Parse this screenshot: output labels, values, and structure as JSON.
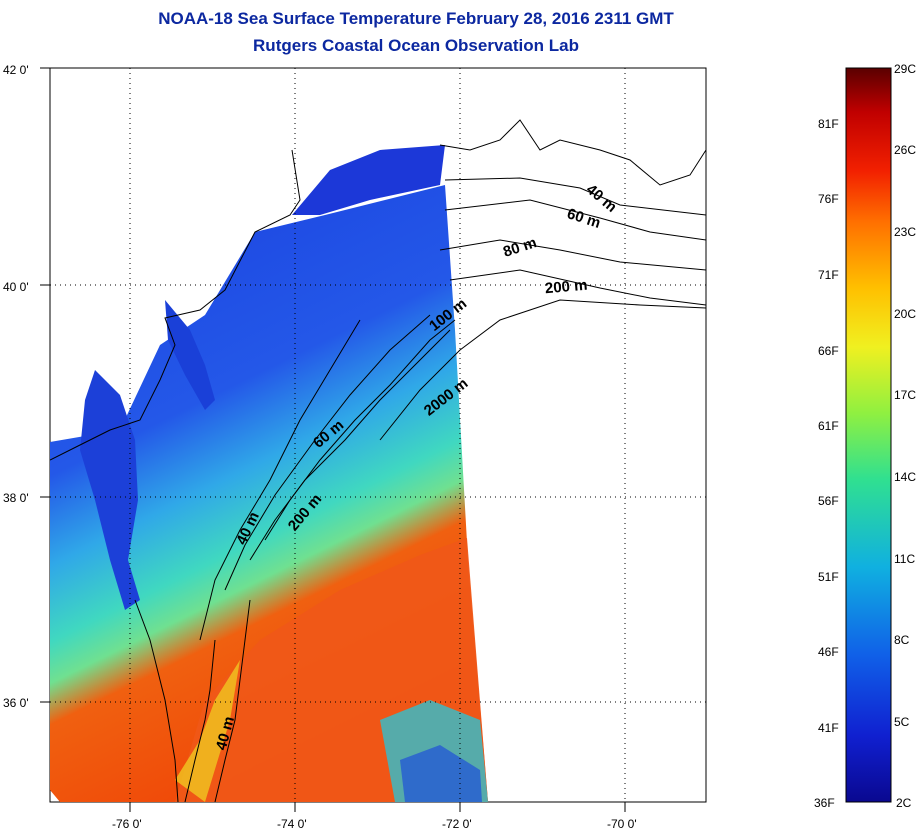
{
  "title": {
    "line1": "NOAA-18 Sea Surface Temperature February 28, 2016 2311 GMT",
    "line2": "Rutgers Coastal Ocean Observation Lab"
  },
  "map": {
    "lat_ticks": [
      "42 0'",
      "40 0'",
      "38 0'",
      "36 0'"
    ],
    "lon_ticks": [
      "-76 0'",
      "-74 0'",
      "-72 0'",
      "-70 0'"
    ],
    "depth_labels": [
      "40 m",
      "60 m",
      "80 m",
      "200 m",
      "100 m",
      "2000 m",
      "60 m",
      "200 m",
      "40 m",
      "40 m"
    ]
  },
  "colorbar": {
    "celsius_labels": [
      "29C",
      "26C",
      "23C",
      "20C",
      "17C",
      "14C",
      "11C",
      "8C",
      "5C",
      "2C"
    ],
    "fahrenheit_labels": [
      "81F",
      "76F",
      "71F",
      "66F",
      "61F",
      "56F",
      "51F",
      "46F",
      "41F",
      "36F"
    ],
    "colors": [
      "#5a0000",
      "#c00000",
      "#f22000",
      "#ff7000",
      "#ffc000",
      "#f0f020",
      "#90f040",
      "#30e090",
      "#10b0e0",
      "#1060e8",
      "#1020d0",
      "#0a0890"
    ]
  },
  "colors": {
    "title": "#0c28a0",
    "cold_water": "#1838e0",
    "warm_water": "#f05010",
    "land": "#ffffff"
  }
}
